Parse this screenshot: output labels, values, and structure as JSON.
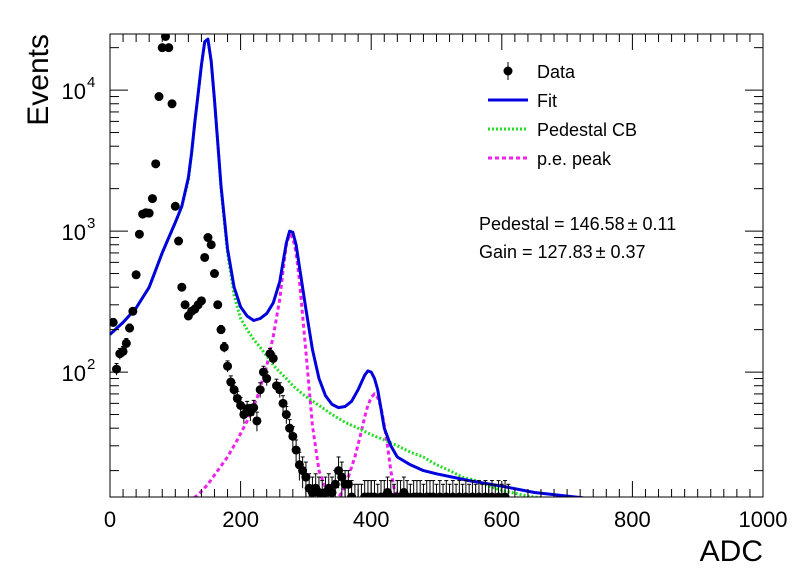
{
  "chart_data": {
    "type": "scatter",
    "xlabel": "ADC",
    "ylabel": "Events",
    "xlim": [
      0,
      1000
    ],
    "ylim": [
      13,
      25000
    ],
    "yscale": "log",
    "xticks": [
      "0",
      "200",
      "400",
      "600",
      "800",
      "1000"
    ],
    "yticks": [
      {
        "value": 100,
        "base": "10",
        "exp": "2"
      },
      {
        "value": 1000,
        "base": "10",
        "exp": "3"
      },
      {
        "value": 10000,
        "base": "10",
        "exp": "4"
      }
    ],
    "legend": {
      "position": "top-right",
      "entries": [
        {
          "label": "Data",
          "style": "marker",
          "color": "#000000"
        },
        {
          "label": "Fit",
          "style": "solid",
          "color": "#0000dd"
        },
        {
          "label": "Pedestal CB",
          "style": "dotted",
          "color": "#22dd22"
        },
        {
          "label": "p.e. peak",
          "style": "dashed",
          "color": "#ee22ee"
        }
      ]
    },
    "annotations": [
      {
        "prefix": "Pedestal = 146.58",
        "pm": "±",
        "suffix": " 0.11"
      },
      {
        "prefix": "Gain = 127.83",
        "pm": "±",
        "suffix": " 0.37"
      }
    ],
    "series": [
      {
        "name": "Data",
        "kind": "points",
        "x": [
          5,
          10,
          15,
          20,
          25,
          30,
          35,
          40,
          45,
          50,
          55,
          60,
          65,
          70,
          75,
          80,
          85,
          90,
          95,
          100,
          105,
          110,
          115,
          120,
          125,
          130,
          135,
          140,
          145,
          150,
          155,
          160,
          165,
          170,
          175,
          180,
          185,
          190,
          195,
          200,
          205,
          210,
          215,
          220,
          225,
          230,
          235,
          240,
          245,
          250,
          255,
          260,
          265,
          270,
          275,
          280,
          285,
          290,
          295,
          300,
          305,
          310,
          315,
          320,
          325,
          330,
          335,
          340,
          345,
          350,
          355,
          360,
          365,
          370,
          375,
          380,
          385,
          390,
          395,
          400,
          405,
          410,
          415,
          420,
          425,
          430,
          435,
          440,
          445,
          450,
          455,
          460,
          465,
          470,
          475,
          480,
          485,
          490,
          495,
          500,
          505,
          510,
          515,
          520,
          525,
          530,
          535,
          540,
          545,
          550,
          555,
          560,
          565,
          570,
          575,
          580,
          585,
          590,
          595,
          600,
          605,
          610
        ],
        "y": [
          225,
          105,
          135,
          140,
          160,
          205,
          270,
          490,
          950,
          1320,
          1350,
          1340,
          1700,
          3000,
          9000,
          20000,
          24000,
          20000,
          8000,
          1500,
          850,
          400,
          300,
          250,
          270,
          280,
          300,
          320,
          650,
          900,
          800,
          500,
          300,
          200,
          150,
          110,
          85,
          75,
          65,
          58,
          50,
          55,
          52,
          56,
          45,
          75,
          100,
          90,
          135,
          125,
          80,
          75,
          60,
          50,
          40,
          35,
          28,
          22,
          20,
          18,
          15,
          14,
          15,
          14,
          13,
          14,
          15,
          14,
          16,
          20,
          18,
          16,
          16,
          13,
          12,
          12,
          12,
          13,
          13,
          13,
          13,
          12,
          13,
          13,
          14,
          13,
          12,
          13,
          13,
          14,
          13,
          12,
          13,
          13,
          13,
          12,
          13,
          13,
          13,
          12,
          13,
          12,
          13,
          12,
          13,
          12,
          13,
          12,
          13,
          12,
          13,
          12,
          13,
          12,
          13,
          12,
          13,
          12,
          13,
          12,
          13,
          12
        ],
        "error": [
          15,
          10,
          12,
          12,
          13,
          14,
          16,
          22,
          31,
          36,
          37,
          37,
          41,
          55,
          95,
          140,
          155,
          140,
          90,
          39,
          29,
          20,
          17,
          16,
          16,
          17,
          17,
          18,
          25,
          30,
          28,
          22,
          17,
          14,
          12,
          10,
          9,
          9,
          8,
          8,
          7,
          7,
          7,
          7,
          7,
          9,
          10,
          10,
          12,
          11,
          9,
          9,
          8,
          7,
          6,
          6,
          5,
          5,
          5,
          5,
          4,
          4,
          4,
          4,
          4,
          4,
          4,
          4,
          4,
          5,
          5,
          4,
          4,
          4,
          4,
          4,
          4,
          4,
          4,
          4,
          4,
          4,
          4,
          4,
          4,
          4,
          4,
          4,
          4,
          4,
          4,
          4,
          4,
          4,
          4,
          4,
          4,
          4,
          4,
          4,
          4,
          4,
          4,
          4,
          4,
          4,
          4,
          4,
          4,
          4,
          4,
          4,
          4,
          4,
          4,
          4,
          4,
          4,
          4,
          4,
          4,
          4
        ]
      },
      {
        "name": "Fit",
        "kind": "line",
        "x": [
          0,
          20,
          40,
          60,
          80,
          90,
          100,
          110,
          120,
          125,
          130,
          135,
          140,
          145,
          150,
          155,
          160,
          165,
          170,
          180,
          190,
          200,
          210,
          220,
          230,
          240,
          250,
          260,
          265,
          270,
          275,
          280,
          285,
          290,
          300,
          310,
          320,
          330,
          340,
          350,
          360,
          370,
          380,
          390,
          395,
          400,
          405,
          410,
          415,
          420,
          430,
          440,
          460,
          480,
          500,
          550,
          600,
          650,
          700,
          725
        ],
        "y": [
          185,
          225,
          285,
          400,
          700,
          900,
          1150,
          1500,
          2400,
          3600,
          6000,
          9500,
          15000,
          22000,
          23000,
          16000,
          8500,
          4300,
          2100,
          750,
          400,
          290,
          250,
          232,
          240,
          260,
          310,
          440,
          600,
          820,
          1000,
          980,
          800,
          560,
          280,
          145,
          90,
          68,
          59,
          56,
          57,
          62,
          75,
          95,
          102,
          100,
          90,
          75,
          55,
          40,
          30,
          25,
          22,
          20,
          19,
          17,
          15.5,
          14,
          13.2,
          12.8
        ]
      },
      {
        "name": "Pedestal CB",
        "kind": "line",
        "x": [
          0,
          20,
          40,
          60,
          80,
          90,
          100,
          110,
          120,
          125,
          130,
          135,
          140,
          145,
          150,
          155,
          160,
          165,
          170,
          180,
          190,
          200,
          210,
          220,
          230,
          240,
          250,
          260,
          270,
          280,
          290,
          300,
          320,
          340,
          360,
          380,
          400,
          420,
          440,
          460,
          480,
          500,
          520,
          540,
          560,
          580,
          600,
          620,
          640,
          660,
          680
        ],
        "y": [
          185,
          225,
          285,
          400,
          700,
          900,
          1150,
          1500,
          2300,
          3500,
          5900,
          9400,
          15000,
          22000,
          23000,
          16000,
          8500,
          4200,
          2000,
          700,
          350,
          240,
          200,
          170,
          150,
          130,
          112,
          100,
          90,
          80,
          73,
          67,
          58,
          50,
          44,
          40,
          36,
          33,
          30,
          27,
          25,
          22,
          20,
          18,
          17,
          15.5,
          14.5,
          13.8,
          13.2,
          12.8,
          12.5
        ]
      },
      {
        "name": "p.e. peak",
        "kind": "line",
        "segments": [
          {
            "x": [
              120,
              135,
              150,
              165,
              180,
              195,
              210,
              225,
              240,
              250,
              260,
              265,
              270,
              275,
              280,
              285,
              290,
              300,
              310,
              320,
              330,
              340,
              345
            ],
            "y": [
              12,
              13.5,
              16,
              20,
              25,
              33,
              45,
              65,
              110,
              180,
              330,
              520,
              800,
              950,
              900,
              700,
              450,
              140,
              42,
              20,
              15,
              13,
              12
            ]
          },
          {
            "x": [
              345,
              355,
              365,
              375,
              385,
              390,
              395,
              400,
              405,
              410,
              415,
              420,
              425,
              430,
              435,
              440,
              445
            ],
            "y": [
              12,
              14,
              18,
              25,
              38,
              48,
              58,
              66,
              70,
              66,
              56,
              42,
              30,
              20,
              15,
              13,
              12
            ]
          }
        ]
      }
    ]
  }
}
